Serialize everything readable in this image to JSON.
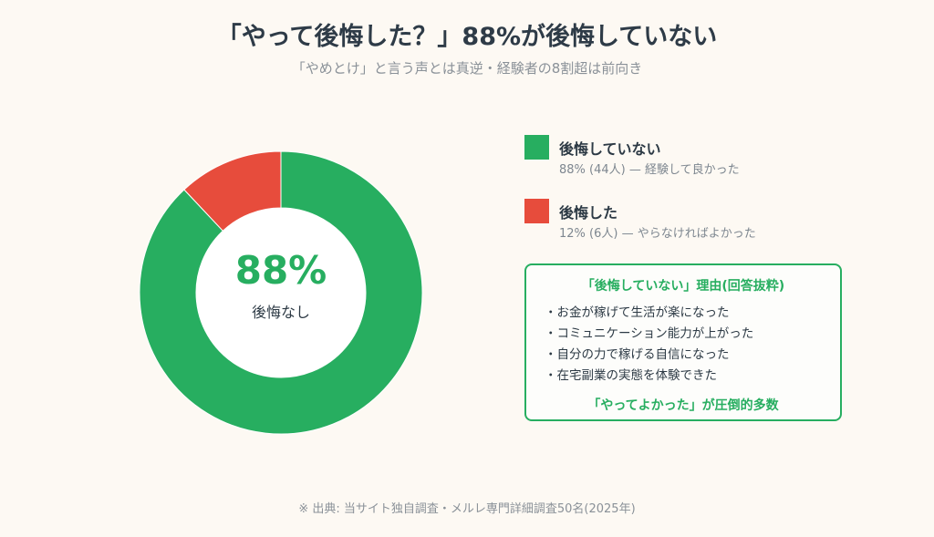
{
  "header": {
    "title": "「やって後悔した？」88%が後悔していない",
    "subtitle": "「やめとけ」と言う声とは真逆・経験者の8割超は前向き"
  },
  "center": {
    "value": "88%",
    "label": "後悔なし"
  },
  "legend": [
    {
      "name": "後悔していない",
      "detail": "88% (44人) — 経験して良かった",
      "color": "#27ae60"
    },
    {
      "name": "後悔した",
      "detail": "12% (6人) — やらなければよかった",
      "color": "#e74c3c"
    }
  ],
  "reasons": {
    "title": "「後悔していない」理由(回答抜粋)",
    "items": [
      "・お金が稼げて生活が楽になった",
      "・コミュニケーション能力が上がった",
      "・自分の力で稼げる自信になった",
      "・在宅副業の実態を体験できた"
    ],
    "footer": "「やってよかった」が圧倒的多数"
  },
  "source": "※ 出典: 当サイト独自調査・メルレ専門詳細調査50名(2025年)",
  "chart_data": {
    "type": "pie",
    "donut": true,
    "categories": [
      "後悔していない",
      "後悔した"
    ],
    "values": [
      88,
      12
    ],
    "counts": [
      44,
      6
    ],
    "colors": [
      "#27ae60",
      "#e74c3c"
    ],
    "unit": "%"
  }
}
